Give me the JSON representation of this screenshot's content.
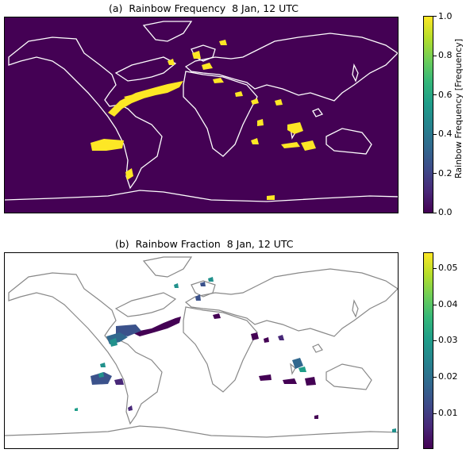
{
  "panel_a": {
    "title": "(a)  Rainbow Frequency  8 Jan, 12 UTC",
    "colorbar_label": "Rainbow Frequency [Frequency]",
    "colorbar_ticks": [
      "0.0",
      "0.2",
      "0.4",
      "0.6",
      "0.8",
      "1.0"
    ],
    "background_color": "#440154",
    "coastline_color": "#ffffff",
    "data_color": "#fde725"
  },
  "panel_b": {
    "title": "(b)  Rainbow Fraction  8 Jan, 12 UTC",
    "colorbar_ticks": [
      "0.01",
      "0.02",
      "0.03",
      "0.04",
      "0.05"
    ],
    "background_color": "#ffffff",
    "coastline_color": "#888888"
  },
  "colormap": "viridis"
}
